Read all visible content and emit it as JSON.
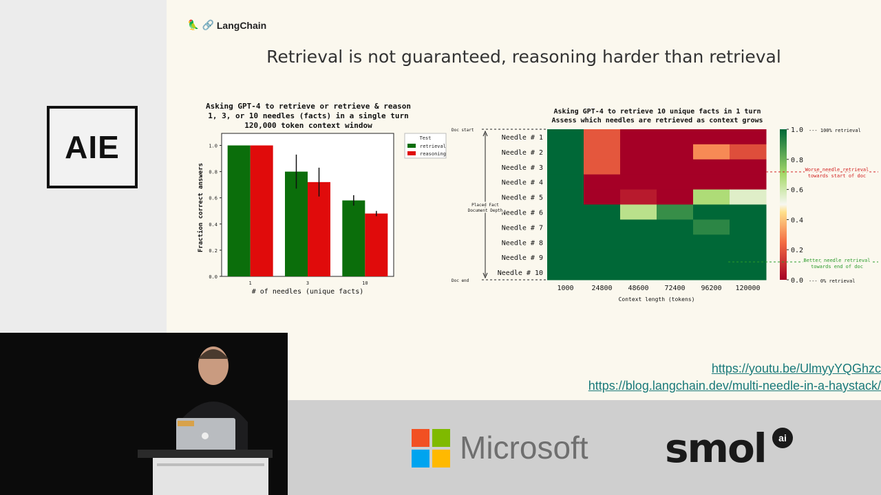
{
  "event_logo": "AIE",
  "slide": {
    "brand": "LangChain",
    "title": "Retrieval is not guaranteed, reasoning harder than retrieval",
    "links": [
      "https://youtu.be/UlmyyYQGhzc",
      "https://blog.langchain.dev/multi-needle-in-a-haystack/"
    ]
  },
  "sponsors": {
    "microsoft": "Microsoft",
    "smol": "smol",
    "smol_badge": "ai"
  },
  "chart_data": [
    {
      "type": "bar",
      "title": [
        "Asking GPT-4 to retrieve or retrieve & reason",
        "1, 3, or 10 needles (facts) in a single turn",
        "120,000 token context window"
      ],
      "xlabel": "# of needles (unique facts)",
      "ylabel": "Fraction correct answers",
      "ylim": [
        0,
        1.05
      ],
      "yticks": [
        "0.0",
        "0.2",
        "0.4",
        "0.6",
        "0.8",
        "1.0"
      ],
      "categories": [
        "1",
        "3",
        "10"
      ],
      "legend_title": "Test",
      "legend_position": "right",
      "series": [
        {
          "name": "retrieval",
          "color": "#0b6e0b",
          "values": [
            1.0,
            0.8,
            0.58
          ],
          "err": [
            0.0,
            0.13,
            0.04
          ]
        },
        {
          "name": "reasoning",
          "color": "#e00b0b",
          "values": [
            1.0,
            0.72,
            0.48
          ],
          "err": [
            0.0,
            0.11,
            0.02
          ]
        }
      ]
    },
    {
      "type": "heatmap",
      "title": [
        "Asking GPT-4 to retrieve 10 unique facts in 1 turn",
        "Assess which needles are retrieved as context grows"
      ],
      "xlabel": "Context length (tokens)",
      "ylabel": [
        "Placed Fact",
        "Document Depth"
      ],
      "x": [
        "1000",
        "24800",
        "48600",
        "72400",
        "96200",
        "120000"
      ],
      "y": [
        "Needle # 1",
        "Needle # 2",
        "Needle # 3",
        "Needle # 4",
        "Needle # 5",
        "Needle # 6",
        "Needle # 7",
        "Needle # 8",
        "Needle # 9",
        "Needle # 10"
      ],
      "values": [
        [
          1,
          0.2,
          0,
          0,
          0,
          0
        ],
        [
          1,
          0.2,
          0,
          0,
          0.3,
          0.18
        ],
        [
          1,
          0.2,
          0,
          0,
          0,
          0
        ],
        [
          1,
          0,
          0,
          0,
          0,
          0
        ],
        [
          1,
          0,
          0.06,
          0,
          0.68,
          0.56
        ],
        [
          1,
          1,
          0.65,
          0.9,
          1,
          1
        ],
        [
          1,
          1,
          1,
          1,
          0.92,
          1
        ],
        [
          1,
          1,
          1,
          1,
          1,
          1
        ],
        [
          1,
          1,
          1,
          1,
          1,
          1
        ],
        [
          1,
          1,
          1,
          1,
          1,
          1
        ]
      ],
      "colorbar_ticks": [
        "1.0",
        "0.8",
        "0.6",
        "0.4",
        "0.2",
        "0.0"
      ],
      "colorbar_top_note": "--- 100% retrieval",
      "colorbar_bottom_note": "--- 0% retrieval",
      "doc_start_label": "Doc start",
      "doc_end_label": "Doc end",
      "annotations": [
        {
          "text": [
            "Worse needle retrieval",
            "towards start of doc"
          ],
          "color": "#d22020"
        },
        {
          "text": [
            "Better needle retrieval",
            "towards end of doc"
          ],
          "color": "#2a9a2a"
        }
      ]
    }
  ]
}
